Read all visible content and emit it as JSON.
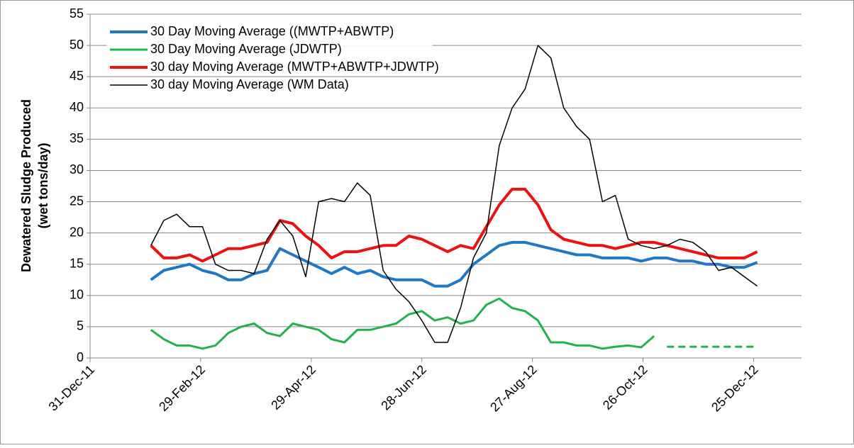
{
  "chart_data": {
    "type": "line",
    "ylabel": [
      "Dewatered Sludge Produced",
      "(wet tons/day)"
    ],
    "x": [
      "2012-02-02",
      "2012-02-09",
      "2012-02-16",
      "2012-02-23",
      "2012-03-01",
      "2012-03-08",
      "2012-03-15",
      "2012-03-22",
      "2012-03-29",
      "2012-04-05",
      "2012-04-12",
      "2012-04-19",
      "2012-04-26",
      "2012-05-03",
      "2012-05-10",
      "2012-05-17",
      "2012-05-24",
      "2012-05-31",
      "2012-06-07",
      "2012-06-14",
      "2012-06-21",
      "2012-06-28",
      "2012-07-05",
      "2012-07-12",
      "2012-07-19",
      "2012-07-26",
      "2012-08-02",
      "2012-08-09",
      "2012-08-16",
      "2012-08-23",
      "2012-08-30",
      "2012-09-06",
      "2012-09-13",
      "2012-09-20",
      "2012-09-27",
      "2012-10-04",
      "2012-10-11",
      "2012-10-18",
      "2012-10-25",
      "2012-11-01",
      "2012-11-08",
      "2012-11-15",
      "2012-11-22",
      "2012-11-29",
      "2012-12-06",
      "2012-12-13",
      "2012-12-20",
      "2012-12-27"
    ],
    "series": [
      {
        "name": "30 Day Moving Average ((MWTP+ABWTP)",
        "color": "#1f77c8",
        "width": 4,
        "values": [
          12.5,
          14,
          14.5,
          15,
          14,
          13.5,
          12.5,
          12.5,
          13.5,
          14,
          17.5,
          16.5,
          15.5,
          14.5,
          13.5,
          14.5,
          13.5,
          14,
          13,
          12.5,
          12.5,
          12.5,
          11.5,
          11.5,
          12.5,
          15,
          16.5,
          18,
          18.5,
          18.5,
          18,
          17.5,
          17,
          16.5,
          16.5,
          16,
          16,
          16,
          15.5,
          16,
          16,
          15.5,
          15.5,
          15,
          15,
          14.5,
          14.5,
          15.3
        ]
      },
      {
        "name": "30 Day Moving Average (JDWTP)",
        "color": "#22b14c",
        "width": 3,
        "values": [
          4.5,
          3,
          2,
          2,
          1.5,
          2,
          4,
          5,
          5.5,
          4,
          3.5,
          5.5,
          5,
          4.5,
          3,
          2.5,
          4.5,
          4.5,
          5,
          5.5,
          7,
          7.5,
          6,
          6.5,
          5.5,
          6,
          8.5,
          9.5,
          8,
          7.5,
          6,
          2.5,
          2.5,
          2,
          2,
          1.5,
          1.8,
          2,
          1.7,
          3.5,
          null,
          null,
          null,
          null,
          null,
          null,
          null,
          null
        ]
      },
      {
        "name": "30 day Moving Average (MWTP+ABWTP+JDWTP)",
        "color": "#ee1111",
        "width": 4,
        "values": [
          18,
          16,
          16,
          16.5,
          15.5,
          16.5,
          17.5,
          17.5,
          18,
          18.5,
          22,
          21.5,
          19.5,
          18,
          16,
          17,
          17,
          17.5,
          18,
          18,
          19.5,
          19,
          18,
          17,
          18,
          17.5,
          21,
          24.5,
          27,
          27,
          24.5,
          20.5,
          19,
          18.5,
          18,
          18,
          17.5,
          18,
          18.5,
          18.5,
          18,
          17.5,
          17,
          16.5,
          16,
          16,
          16,
          17
        ]
      },
      {
        "name": "30 day Moving Average (WM Data)",
        "color": "#000000",
        "width": 1.5,
        "values": [
          18,
          22,
          23,
          21,
          21,
          15,
          14,
          14,
          13.5,
          19,
          22,
          19.5,
          13,
          25,
          25.5,
          25,
          28,
          26,
          14,
          11,
          9,
          6,
          2.5,
          2.5,
          8,
          16,
          20,
          34,
          40,
          43,
          50,
          48,
          40,
          37,
          35,
          25,
          26,
          19,
          18,
          17.5,
          18,
          19,
          18.5,
          17,
          14,
          14.5,
          13,
          11.5
        ]
      },
      {
        "color": "#22b14c",
        "width": 3,
        "dashed": true,
        "values": [
          null,
          null,
          null,
          null,
          null,
          null,
          null,
          null,
          null,
          null,
          null,
          null,
          null,
          null,
          null,
          null,
          null,
          null,
          null,
          null,
          null,
          null,
          null,
          null,
          null,
          null,
          null,
          null,
          null,
          null,
          null,
          null,
          null,
          null,
          null,
          null,
          null,
          null,
          null,
          null,
          1.8,
          1.8,
          1.8,
          1.8,
          1.8,
          1.8,
          1.8,
          1.8
        ]
      }
    ],
    "xlim": [
      "2011-12-31",
      "2013-01-20"
    ],
    "xticks": [
      {
        "value": "2011-12-31",
        "label": "31-Dec-11"
      },
      {
        "value": "2012-02-29",
        "label": "29-Feb-12"
      },
      {
        "value": "2012-04-29",
        "label": "29-Apr-12"
      },
      {
        "value": "2012-06-28",
        "label": "28-Jun-12"
      },
      {
        "value": "2012-08-27",
        "label": "27-Aug-12"
      },
      {
        "value": "2012-10-26",
        "label": "26-Oct-12"
      },
      {
        "value": "2012-12-25",
        "label": "25-Dec-12"
      }
    ],
    "ylim": [
      0,
      55
    ],
    "yticks": [
      0,
      5,
      10,
      15,
      20,
      25,
      30,
      35,
      40,
      45,
      50,
      55
    ],
    "grid": true,
    "legend": "top-left"
  }
}
